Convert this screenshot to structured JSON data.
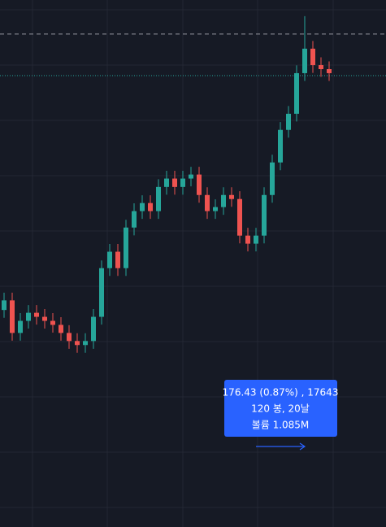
{
  "chart_data": {
    "type": "candlestick",
    "open": [
      19500,
      19531,
      19426,
      19465,
      19491,
      19478,
      19465,
      19452,
      19426,
      19400,
      19387,
      19400,
      19478,
      19635,
      19688,
      19635,
      19766,
      19819,
      19845,
      19819,
      19897,
      19924,
      19897,
      19924,
      19937,
      19871,
      19819,
      19832,
      19871,
      19858,
      19740,
      19714,
      19740,
      19871,
      19976,
      20081,
      20133,
      20264,
      20343,
      20290,
      20277
    ],
    "high": [
      19556,
      19556,
      19490,
      19516,
      19516,
      19503,
      19490,
      19477,
      19451,
      19425,
      19425,
      19503,
      19660,
      19713,
      19713,
      19791,
      19844,
      19870,
      19870,
      19922,
      19949,
      19949,
      19949,
      19962,
      19962,
      19896,
      19857,
      19896,
      19896,
      19883,
      19765,
      19765,
      19896,
      20001,
      20106,
      20158,
      20289,
      20448,
      20368,
      20315,
      20302
    ],
    "low": [
      19475,
      19401,
      19401,
      19440,
      19453,
      19440,
      19427,
      19401,
      19375,
      19362,
      19362,
      19375,
      19453,
      19610,
      19610,
      19610,
      19741,
      19794,
      19794,
      19794,
      19872,
      19872,
      19872,
      19899,
      19846,
      19794,
      19794,
      19807,
      19833,
      19715,
      19689,
      19689,
      19715,
      19846,
      19951,
      20056,
      20108,
      20239,
      20265,
      20252,
      20239
    ],
    "close": [
      19531,
      19426,
      19465,
      19491,
      19478,
      19465,
      19452,
      19426,
      19400,
      19387,
      19400,
      19478,
      19635,
      19688,
      19635,
      19766,
      19819,
      19845,
      19819,
      19897,
      19924,
      19897,
      19924,
      19937,
      19871,
      19819,
      19832,
      19871,
      19858,
      19740,
      19714,
      19740,
      19871,
      19976,
      20081,
      20133,
      20264,
      20343,
      20290,
      20277,
      20264
    ],
    "up_color": "#26a69a",
    "down_color": "#ef5350",
    "ylim": [
      18800,
      20500
    ],
    "reference_lines": [
      20390,
      20256
    ],
    "grid": true,
    "annotations": [
      "176.43 (0.87%) , 17643",
      "120 봉, 20날",
      "볼륨 1.085M"
    ]
  }
}
